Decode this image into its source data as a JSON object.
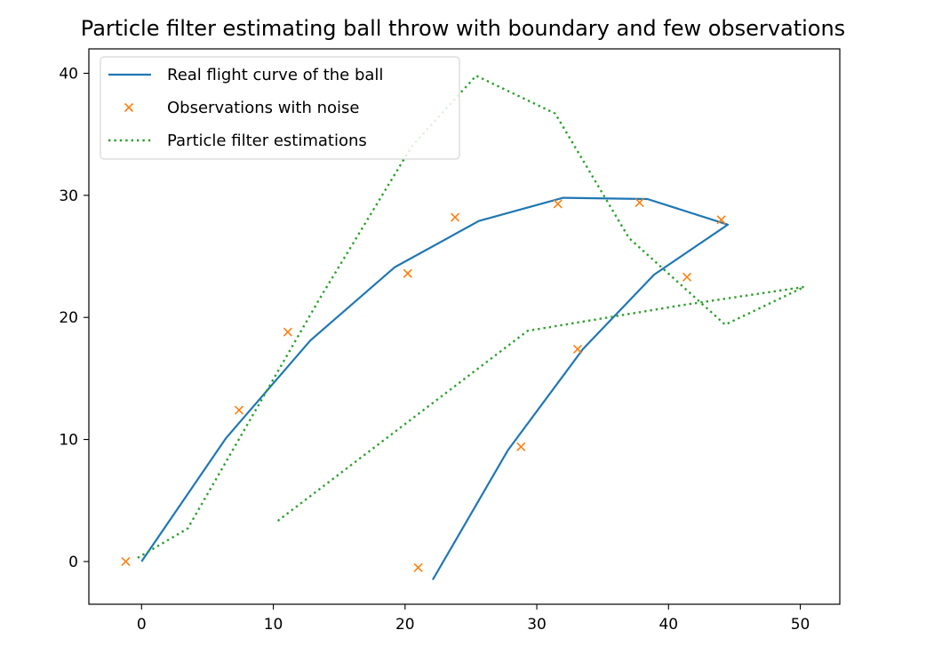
{
  "chart_data": {
    "type": "line",
    "title": "Particle filter estimating ball throw with boundary and few observations",
    "xlabel": "",
    "ylabel": "",
    "xlim": [
      -4,
      53
    ],
    "ylim": [
      -3.5,
      42
    ],
    "xticks": [
      0,
      10,
      20,
      30,
      40,
      50
    ],
    "yticks": [
      0,
      10,
      20,
      30,
      40
    ],
    "grid": false,
    "legend_position": "upper-left",
    "series": [
      {
        "name": "Real flight curve of the ball",
        "style": "solid",
        "color": "#1f77b4",
        "x": [
          0,
          6.4,
          12.8,
          19.2,
          25.6,
          32.0,
          38.4,
          44.5,
          38.9,
          33.5,
          27.8,
          22.1
        ],
        "y": [
          0,
          10.1,
          18.1,
          24.1,
          27.9,
          29.8,
          29.7,
          27.6,
          23.5,
          17.4,
          9.1,
          -1.5
        ]
      },
      {
        "name": "Observations with noise",
        "style": "x-marker",
        "color": "#ff7f0e",
        "x": [
          -1.2,
          7.4,
          11.1,
          20.2,
          23.8,
          31.6,
          37.8,
          44.0,
          41.4,
          33.1,
          28.8,
          21.0
        ],
        "y": [
          0,
          12.4,
          18.8,
          23.6,
          28.2,
          29.3,
          29.4,
          28.0,
          23.3,
          17.4,
          9.4,
          -0.5
        ]
      },
      {
        "name": "Particle filter estimations",
        "style": "dotted",
        "color": "#2ca02c",
        "x": [
          -0.3,
          3.5,
          13.5,
          20.5,
          25.4,
          31.4,
          37.0,
          44.3,
          50.3,
          41.0,
          29.3,
          10.3
        ],
        "y": [
          0.3,
          2.7,
          21.5,
          34.0,
          39.8,
          36.7,
          26.5,
          19.4,
          22.5,
          21.0,
          18.9,
          3.3
        ]
      }
    ]
  }
}
